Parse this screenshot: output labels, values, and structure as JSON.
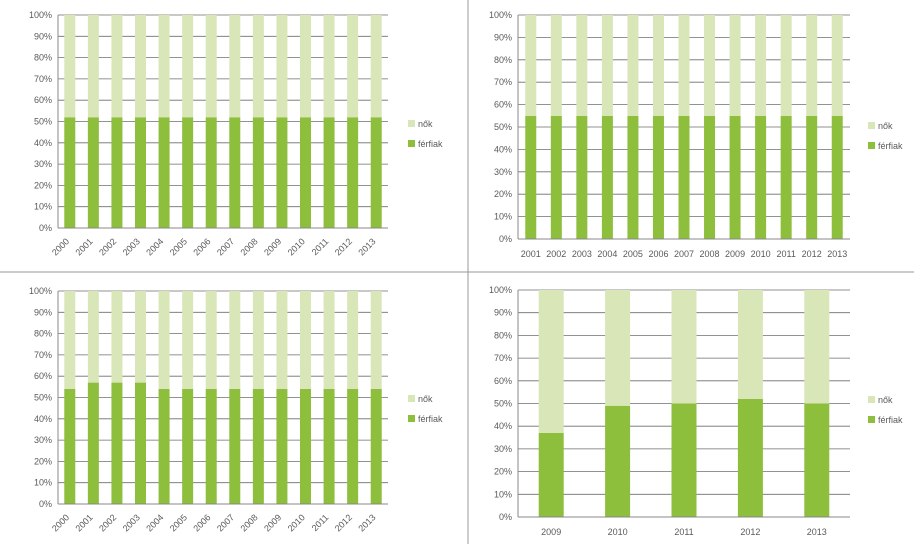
{
  "colors": {
    "top_series": "#d9e6b8",
    "bottom_series": "#8dbe3c",
    "gridline": "#6e6e6e",
    "axis": "#888888",
    "divider": "#9a9a9a"
  },
  "chart_data": [
    {
      "type": "bar",
      "stacked": "percent",
      "categories": [
        "2000",
        "2001",
        "2002",
        "2003",
        "2004",
        "2005",
        "2006",
        "2007",
        "2008",
        "2009",
        "2010",
        "2011",
        "2012",
        "2013"
      ],
      "ytick_labels": [
        "0%",
        "10%",
        "20%",
        "30%",
        "40%",
        "50%",
        "60%",
        "70%",
        "80%",
        "90%",
        "100%"
      ],
      "ylim": [
        0,
        100
      ],
      "grid": true,
      "legend_position": "right",
      "series": [
        {
          "name": "nők",
          "values": [
            48,
            48,
            48,
            48,
            48,
            48,
            48,
            48,
            48,
            48,
            48,
            48,
            48,
            48
          ]
        },
        {
          "name": "férfiak",
          "values": [
            52,
            52,
            52,
            52,
            52,
            52,
            52,
            52,
            52,
            52,
            52,
            52,
            52,
            52
          ]
        }
      ]
    },
    {
      "type": "bar",
      "stacked": "percent",
      "categories": [
        "2001",
        "2002",
        "2003",
        "2004",
        "2005",
        "2006",
        "2007",
        "2008",
        "2009",
        "2010",
        "2011",
        "2012",
        "2013"
      ],
      "ytick_labels": [
        "0%",
        "10%",
        "20%",
        "30%",
        "40%",
        "50%",
        "60%",
        "70%",
        "80%",
        "90%",
        "100%"
      ],
      "ylim": [
        0,
        100
      ],
      "grid": true,
      "legend_position": "right",
      "series": [
        {
          "name": "nők",
          "values": [
            45,
            45,
            45,
            45,
            45,
            45,
            45,
            45,
            45,
            45,
            45,
            45,
            45
          ]
        },
        {
          "name": "férfiak",
          "values": [
            55,
            55,
            55,
            55,
            55,
            55,
            55,
            55,
            55,
            55,
            55,
            55,
            55
          ]
        }
      ]
    },
    {
      "type": "bar",
      "stacked": "percent",
      "categories": [
        "2000",
        "2001",
        "2002",
        "2003",
        "2004",
        "2005",
        "2006",
        "2007",
        "2008",
        "2009",
        "2010",
        "2011",
        "2012",
        "2013"
      ],
      "ytick_labels": [
        "0%",
        "10%",
        "20%",
        "30%",
        "40%",
        "50%",
        "60%",
        "70%",
        "80%",
        "90%",
        "100%"
      ],
      "ylim": [
        0,
        100
      ],
      "grid": true,
      "legend_position": "right",
      "series": [
        {
          "name": "nők",
          "values": [
            46,
            43,
            43,
            43,
            46,
            46,
            46,
            46,
            46,
            46,
            46,
            46,
            46,
            46
          ]
        },
        {
          "name": "férfiak",
          "values": [
            54,
            57,
            57,
            57,
            54,
            54,
            54,
            54,
            54,
            54,
            54,
            54,
            54,
            54
          ]
        }
      ]
    },
    {
      "type": "bar",
      "stacked": "percent",
      "categories": [
        "2009",
        "2010",
        "2011",
        "2012",
        "2013"
      ],
      "ytick_labels": [
        "0%",
        "10%",
        "20%",
        "30%",
        "40%",
        "50%",
        "60%",
        "70%",
        "80%",
        "90%",
        "100%"
      ],
      "ylim": [
        0,
        100
      ],
      "grid": true,
      "legend_position": "right",
      "series": [
        {
          "name": "nők",
          "values": [
            63,
            51,
            50,
            48,
            50
          ]
        },
        {
          "name": "férfiak",
          "values": [
            37,
            49,
            50,
            52,
            50
          ]
        }
      ]
    }
  ]
}
